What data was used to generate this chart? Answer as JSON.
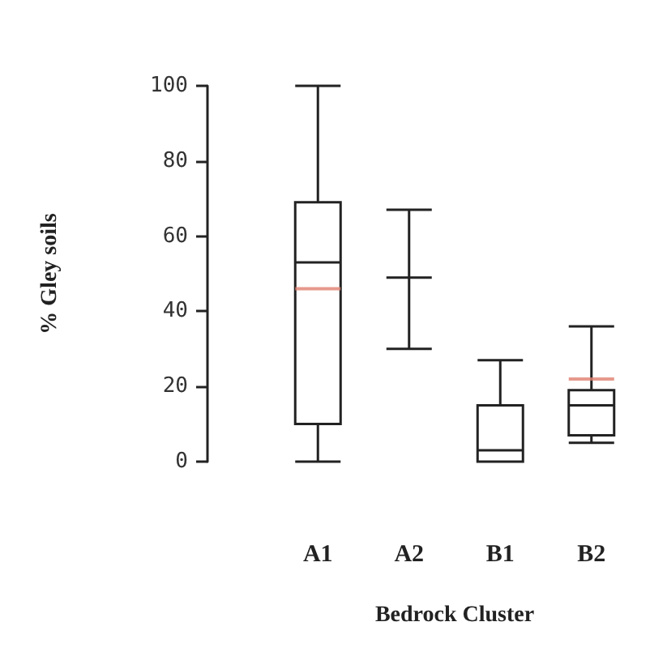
{
  "chart_data": {
    "type": "box",
    "xlabel": "Bedrock Cluster",
    "ylabel": "% Gley soils",
    "categories": [
      "A1",
      "A2",
      "B1",
      "B2"
    ],
    "boxes": [
      {
        "low": 0,
        "q1": 10,
        "median": 53,
        "q3": 69,
        "high": 100,
        "mean": 46
      },
      {
        "low": 30,
        "q1": 49,
        "median": 49,
        "q3": 49,
        "high": 67
      },
      {
        "low": 0,
        "q1": 0,
        "median": 3,
        "q3": 15,
        "high": 27
      },
      {
        "low": 5,
        "q1": 7,
        "median": 15,
        "q3": 19,
        "high": 36,
        "mean": 22
      }
    ],
    "ylim": [
      0,
      100
    ],
    "yticks": [
      0,
      20,
      40,
      60,
      80,
      100
    ],
    "grid": false
  }
}
